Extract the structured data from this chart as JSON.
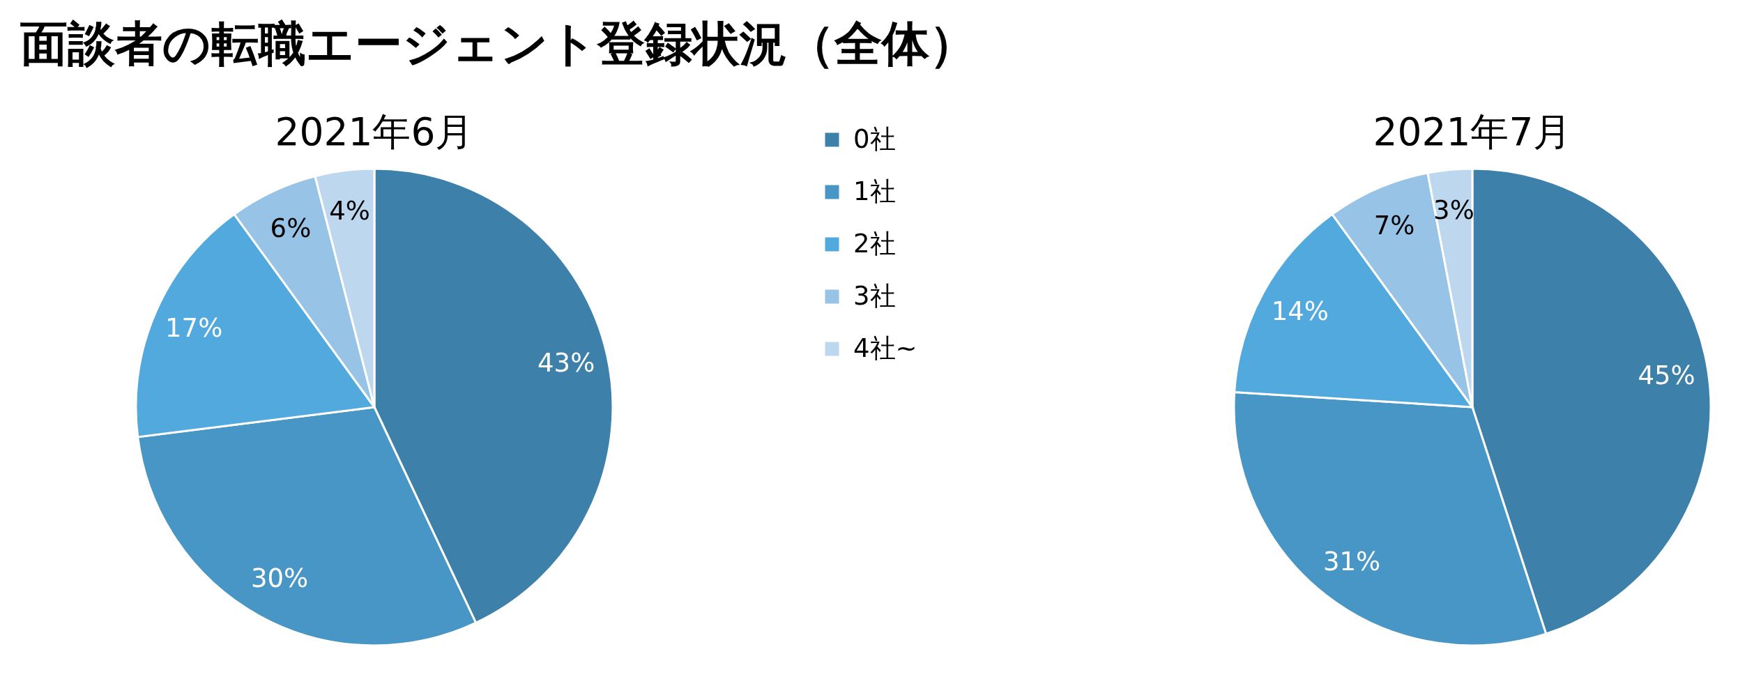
{
  "chart_data": {
    "type": "pie",
    "title": "面談者の転職エージェント登録状況（全体）",
    "categories": [
      "0社",
      "1社",
      "2社",
      "3社",
      "4社~"
    ],
    "colors": [
      "#3d81aa",
      "#4896c5",
      "#52a9dd",
      "#96c3e6",
      "#bdd7ee"
    ],
    "series": [
      {
        "name": "2021年6月",
        "values": [
          43,
          30,
          17,
          6,
          4
        ],
        "value_labels": [
          "43%",
          "30%",
          "17%",
          "6%",
          "4%"
        ]
      },
      {
        "name": "2021年7月",
        "values": [
          45,
          31,
          14,
          7,
          3
        ],
        "value_labels": [
          "45%",
          "31%",
          "14%",
          "7%",
          "3%"
        ]
      }
    ],
    "legend": "top"
  }
}
